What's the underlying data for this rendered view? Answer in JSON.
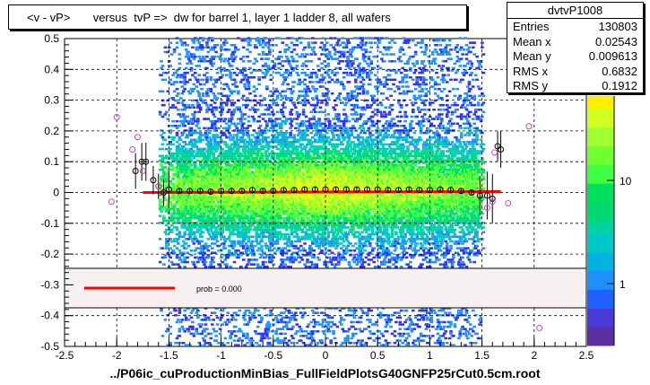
{
  "title": "<v - vP>       versus  tvP =>  dw for barrel 1, layer 1 ladder 8, all wafers",
  "stats": {
    "name": "dvtvP1008",
    "rows": [
      {
        "label": "Entries",
        "value": "130803"
      },
      {
        "label": "Mean x",
        "value": "0.02543"
      },
      {
        "label": "Mean y",
        "value": "0.009613"
      },
      {
        "label": "RMS x",
        "value": "0.6832"
      },
      {
        "label": "RMS y",
        "value": "0.1912"
      }
    ]
  },
  "footer": "../P06ic_cuProductionMinBias_FullFieldPlotsG40GNFP25rCut0.5cm.root",
  "legend": {
    "fit_label": "prob = 0.000"
  },
  "colors": {
    "fit": "#ff0000",
    "profile_marker": "#000000",
    "sigma_marker": "#cc44cc",
    "legend_bg": "#f7f0f0"
  },
  "chart_data": {
    "type": "heatmap",
    "xlim": [
      -2.5,
      2.5
    ],
    "ylim": [
      -0.5,
      0.5
    ],
    "x_ticks": [
      "-2.5",
      "-2",
      "-1.5",
      "-1",
      "-0.5",
      "0",
      "0.5",
      "1",
      "1.5",
      "2",
      "2.5"
    ],
    "y_ticks": [
      "-0.5",
      "-0.4",
      "-0.3",
      "-0.2",
      "-0.1",
      "0",
      "0.1",
      "0.2",
      "0.3",
      "0.4",
      "0.5"
    ],
    "colorbar_ticks": [
      "1",
      "10"
    ],
    "colorbar_unit": "2",
    "grid": true,
    "profile_points": [
      {
        "x": -1.82,
        "y": 0.07
      },
      {
        "x": -1.76,
        "y": 0.1
      },
      {
        "x": -1.72,
        "y": 0.1
      },
      {
        "x": -1.65,
        "y": 0.04
      },
      {
        "x": -1.6,
        "y": 0.02
      },
      {
        "x": -1.55,
        "y": 0.0
      },
      {
        "x": -1.5,
        "y": 0.01
      },
      {
        "x": -1.4,
        "y": 0.005
      },
      {
        "x": -1.3,
        "y": 0.005
      },
      {
        "x": -1.2,
        "y": 0.005
      },
      {
        "x": -1.1,
        "y": 0.003
      },
      {
        "x": -1.0,
        "y": 0.005
      },
      {
        "x": -0.9,
        "y": 0.005
      },
      {
        "x": -0.8,
        "y": 0.005
      },
      {
        "x": -0.7,
        "y": 0.008
      },
      {
        "x": -0.6,
        "y": 0.005
      },
      {
        "x": -0.5,
        "y": 0.005
      },
      {
        "x": -0.4,
        "y": 0.008
      },
      {
        "x": -0.3,
        "y": 0.008
      },
      {
        "x": -0.2,
        "y": 0.01
      },
      {
        "x": -0.1,
        "y": 0.01
      },
      {
        "x": 0.0,
        "y": 0.01
      },
      {
        "x": 0.1,
        "y": 0.01
      },
      {
        "x": 0.2,
        "y": 0.01
      },
      {
        "x": 0.3,
        "y": 0.01
      },
      {
        "x": 0.4,
        "y": 0.01
      },
      {
        "x": 0.5,
        "y": 0.01
      },
      {
        "x": 0.6,
        "y": 0.008
      },
      {
        "x": 0.7,
        "y": 0.008
      },
      {
        "x": 0.8,
        "y": 0.01
      },
      {
        "x": 0.9,
        "y": 0.008
      },
      {
        "x": 1.0,
        "y": 0.008
      },
      {
        "x": 1.1,
        "y": 0.01
      },
      {
        "x": 1.2,
        "y": 0.008
      },
      {
        "x": 1.3,
        "y": 0.005
      },
      {
        "x": 1.4,
        "y": 0.0
      },
      {
        "x": 1.48,
        "y": -0.01
      },
      {
        "x": 1.55,
        "y": -0.01
      },
      {
        "x": 1.6,
        "y": -0.02
      },
      {
        "x": 1.65,
        "y": 0.15
      },
      {
        "x": 1.68,
        "y": 0.14
      }
    ],
    "sigma_points": [
      {
        "x": -2.05,
        "y": -0.03
      },
      {
        "x": -2.0,
        "y": 0.245
      },
      {
        "x": -1.85,
        "y": 0.14
      },
      {
        "x": -1.8,
        "y": 0.18
      },
      {
        "x": -1.75,
        "y": 0.07
      },
      {
        "x": -1.6,
        "y": 0.02
      },
      {
        "x": 1.55,
        "y": -0.05
      },
      {
        "x": 1.6,
        "y": -0.03
      },
      {
        "x": 1.62,
        "y": 0.13
      },
      {
        "x": 1.75,
        "y": -0.035
      },
      {
        "x": 1.95,
        "y": 0.215
      },
      {
        "x": 2.05,
        "y": -0.44
      }
    ],
    "fit_line": {
      "x": [
        -1.75,
        1.68
      ],
      "y": [
        0.0,
        0.003
      ]
    }
  }
}
